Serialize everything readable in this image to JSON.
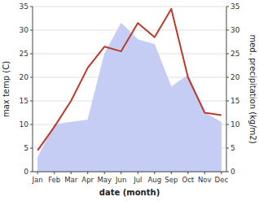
{
  "chart_data": {
    "type": "line",
    "categories": [
      "Jan",
      "Feb",
      "Mar",
      "Apr",
      "May",
      "Jun",
      "Jul",
      "Aug",
      "Sep",
      "Oct",
      "Nov",
      "Dec"
    ],
    "xlabel": "date (month)",
    "ylabel": "max temp (C)",
    "y2label": "med. precipitation (kg/m2)",
    "ylim": [
      0,
      35
    ],
    "yticks": [
      0,
      5,
      10,
      15,
      20,
      25,
      30,
      35
    ],
    "y2lim": [
      0,
      35
    ],
    "y2ticks": [
      0,
      5,
      10,
      15,
      20,
      25,
      30,
      35
    ],
    "grid": true,
    "series": [
      {
        "type": "area",
        "axis": "y2",
        "color": "#c5cdf5",
        "values": [
          3.0,
          10.0,
          10.5,
          11.0,
          25.0,
          31.5,
          28.0,
          27.0,
          18.0,
          20.5,
          12.5,
          10.5
        ]
      },
      {
        "type": "line",
        "color": "#c0392b",
        "values": [
          4.5,
          9.5,
          15.0,
          22.0,
          26.5,
          25.5,
          31.5,
          28.5,
          34.5,
          20.0,
          12.5,
          12.0
        ]
      }
    ]
  }
}
